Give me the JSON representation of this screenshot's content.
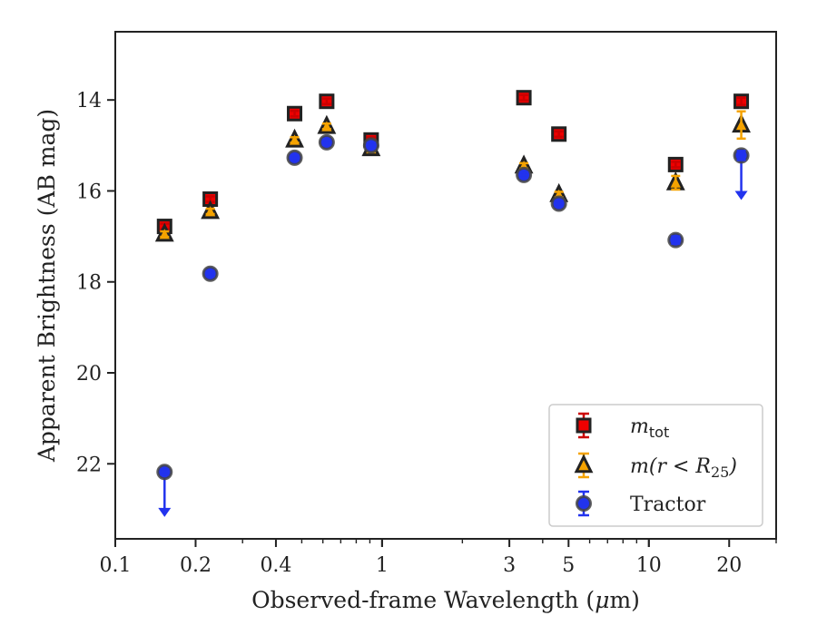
{
  "chart_data": {
    "type": "scatter",
    "xscale": "log",
    "yaxis_inverted": true,
    "xlabel_parts": [
      "Observed-frame Wavelength (",
      "μ",
      "m)"
    ],
    "ylabel": "Apparent Brightness (AB mag)",
    "xlim": [
      0.1,
      30
    ],
    "ylim": [
      23.65,
      12.5
    ],
    "xticks": [
      {
        "value": 0.1,
        "label": "0.1"
      },
      {
        "value": 0.2,
        "label": "0.2"
      },
      {
        "value": 0.4,
        "label": "0.4"
      },
      {
        "value": 1,
        "label": "1"
      },
      {
        "value": 3,
        "label": "3"
      },
      {
        "value": 5,
        "label": "5"
      },
      {
        "value": 10,
        "label": "10"
      },
      {
        "value": 20,
        "label": "20"
      }
    ],
    "yticks": [
      {
        "value": 14,
        "label": "14"
      },
      {
        "value": 16,
        "label": "16"
      },
      {
        "value": 18,
        "label": "18"
      },
      {
        "value": 20,
        "label": "20"
      },
      {
        "value": 22,
        "label": "22"
      }
    ],
    "grid": false,
    "legend_position": "lower-right",
    "series": [
      {
        "name": "m_tot",
        "legend_parts": [
          "m",
          "tot"
        ],
        "marker": "square",
        "color": "#ee0000",
        "edgecolor": "#222222",
        "errcolor": "#cc0000",
        "x": [
          0.153,
          0.227,
          0.47,
          0.62,
          0.91,
          3.4,
          4.6,
          12.6,
          22.2
        ],
        "y": [
          16.78,
          16.18,
          14.3,
          14.03,
          14.88,
          13.95,
          14.75,
          15.42,
          14.03
        ],
        "err": [
          0.05,
          0.05,
          0.04,
          0.04,
          0.06,
          0.04,
          0.05,
          0.06,
          0.08
        ]
      },
      {
        "name": "m(r < R25)",
        "legend_parts": [
          "m(r < R",
          "25",
          ")"
        ],
        "marker": "triangle",
        "color": "#f5a300",
        "edgecolor": "#222222",
        "errcolor": "#f5a300",
        "x": [
          0.153,
          0.227,
          0.47,
          0.62,
          0.91,
          3.4,
          4.6,
          12.6,
          22.2
        ],
        "y": [
          16.95,
          16.45,
          14.88,
          14.58,
          15.07,
          15.45,
          16.08,
          15.82,
          14.55
        ],
        "err": [
          0.05,
          0.05,
          0.05,
          0.05,
          0.06,
          0.05,
          0.05,
          0.15,
          0.3
        ]
      },
      {
        "name": "Tractor",
        "legend_parts": [
          "Tractor"
        ],
        "marker": "circle",
        "color": "#2233ee",
        "edgecolor": "#444444",
        "errcolor": "#2233ee",
        "x": [
          0.153,
          0.227,
          0.47,
          0.62,
          0.91,
          3.4,
          4.6,
          12.6,
          22.2
        ],
        "y": [
          22.18,
          17.82,
          15.27,
          14.93,
          15.0,
          15.65,
          16.28,
          17.08,
          15.22
        ],
        "err": [
          0.05,
          0.05,
          0.04,
          0.04,
          0.05,
          0.04,
          0.04,
          0.08,
          0.1
        ],
        "upper_limits": [
          {
            "x": 0.153,
            "y": 22.18,
            "arrow_to": 23.15
          },
          {
            "x": 22.2,
            "y": 15.22,
            "arrow_to": 16.18
          }
        ]
      }
    ]
  }
}
